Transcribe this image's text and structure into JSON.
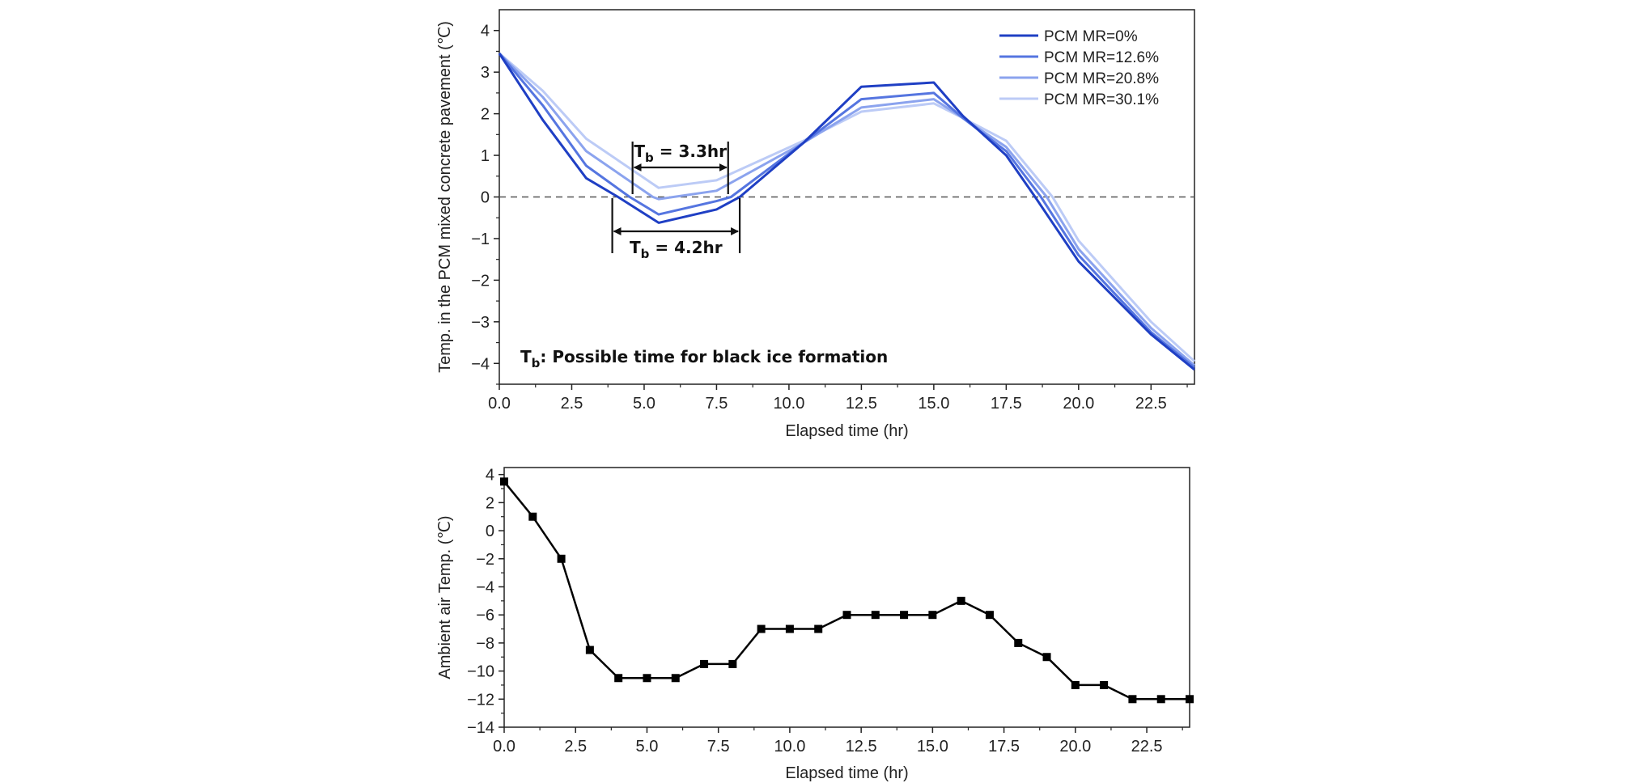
{
  "chart_data": [
    {
      "type": "line",
      "xlabel": "Elapsed time (hr)",
      "ylabel": "Temp. in the PCM mixed concrete pavement (℃)",
      "xlim": [
        0,
        24
      ],
      "ylim": [
        -4.5,
        4.5
      ],
      "xticks": [
        0.0,
        2.5,
        5.0,
        7.5,
        10.0,
        12.5,
        15.0,
        17.5,
        20.0,
        22.5
      ],
      "xtick_labels": [
        "0.0",
        "2.5",
        "5.0",
        "7.5",
        "10.0",
        "12.5",
        "15.0",
        "17.5",
        "20.0",
        "22.5"
      ],
      "yticks": [
        4,
        3,
        2,
        1,
        0,
        -1,
        -2,
        -3,
        -4
      ],
      "ytick_labels": [
        "4",
        "3",
        "2",
        "1",
        "0",
        "−1",
        "−2",
        "−3",
        "−4"
      ],
      "reference_line": {
        "y": 0,
        "style": "dashed"
      },
      "legend_position": "top-right",
      "series": [
        {
          "name": "PCM MR=0%",
          "color": "#1f3fc4",
          "points": [
            [
              0,
              3.45
            ],
            [
              1.5,
              1.85
            ],
            [
              3,
              0.45
            ],
            [
              4.1,
              0
            ],
            [
              5.5,
              -0.62
            ],
            [
              7.5,
              -0.3
            ],
            [
              8.3,
              0
            ],
            [
              10.5,
              1.3
            ],
            [
              12.5,
              2.65
            ],
            [
              15,
              2.75
            ],
            [
              16,
              1.95
            ],
            [
              17.5,
              1.0
            ],
            [
              18.5,
              0
            ],
            [
              20,
              -1.55
            ],
            [
              22.5,
              -3.3
            ],
            [
              24,
              -4.15
            ]
          ]
        },
        {
          "name": "PCM MR=12.6%",
          "color": "#5575e0",
          "points": [
            [
              0,
              3.45
            ],
            [
              1.5,
              2.2
            ],
            [
              3,
              0.75
            ],
            [
              4.5,
              0
            ],
            [
              5.5,
              -0.42
            ],
            [
              7.5,
              -0.1
            ],
            [
              8,
              0
            ],
            [
              10.5,
              1.3
            ],
            [
              12.5,
              2.35
            ],
            [
              15,
              2.5
            ],
            [
              16,
              1.9
            ],
            [
              17.5,
              1.1
            ],
            [
              18.7,
              0
            ],
            [
              20,
              -1.4
            ],
            [
              22.5,
              -3.25
            ],
            [
              24,
              -4.1
            ]
          ]
        },
        {
          "name": "PCM MR=20.8%",
          "color": "#8ba3ee",
          "points": [
            [
              0,
              3.45
            ],
            [
              1.5,
              2.4
            ],
            [
              3,
              1.1
            ],
            [
              5.3,
              0
            ],
            [
              5.5,
              -0.05
            ],
            [
              7.5,
              0.15
            ],
            [
              10.5,
              1.3
            ],
            [
              12.5,
              2.15
            ],
            [
              15,
              2.35
            ],
            [
              16,
              1.9
            ],
            [
              17.5,
              1.2
            ],
            [
              18.9,
              0
            ],
            [
              20,
              -1.25
            ],
            [
              22.5,
              -3.15
            ],
            [
              24,
              -4.05
            ]
          ]
        },
        {
          "name": "PCM MR=30.1%",
          "color": "#bccbf6",
          "points": [
            [
              0,
              3.45
            ],
            [
              1.5,
              2.55
            ],
            [
              3,
              1.4
            ],
            [
              5.5,
              0.22
            ],
            [
              7.5,
              0.4
            ],
            [
              10.5,
              1.35
            ],
            [
              12.5,
              2.05
            ],
            [
              15,
              2.25
            ],
            [
              16,
              1.9
            ],
            [
              17.5,
              1.35
            ],
            [
              19.1,
              0
            ],
            [
              20,
              -1.05
            ],
            [
              22.5,
              -3.0
            ],
            [
              24,
              -3.95
            ]
          ]
        }
      ],
      "annotations": [
        {
          "label_main": "T",
          "label_sub": "b",
          "label_rest": " = 3.3hr",
          "x_start": 4.6,
          "x_end": 7.9
        },
        {
          "label_main": "T",
          "label_sub": "b",
          "label_rest": " = 4.2hr",
          "x_start": 3.9,
          "x_end": 8.3
        }
      ],
      "note": {
        "main": "T",
        "sub": "b",
        "rest": ": Possible time for black ice formation"
      }
    },
    {
      "type": "line",
      "xlabel": "Elapsed time (hr)",
      "ylabel": "Ambient air Temp. (℃)",
      "xlim": [
        0,
        24
      ],
      "ylim": [
        -14,
        4.5
      ],
      "xticks": [
        0.0,
        2.5,
        5.0,
        7.5,
        10.0,
        12.5,
        15.0,
        17.5,
        20.0,
        22.5
      ],
      "xtick_labels": [
        "0.0",
        "2.5",
        "5.0",
        "7.5",
        "10.0",
        "12.5",
        "15.0",
        "17.5",
        "20.0",
        "22.5"
      ],
      "yticks": [
        4,
        2,
        0,
        -2,
        -4,
        -6,
        -8,
        -10,
        -12,
        -14
      ],
      "ytick_labels": [
        "4",
        "2",
        "0",
        "−2",
        "−4",
        "−6",
        "−8",
        "−10",
        "−12",
        "−14"
      ],
      "series": [
        {
          "name": "Ambient air Temp.",
          "color": "#000000",
          "marker": "square",
          "x": [
            0,
            1,
            2,
            3,
            4,
            5,
            6,
            7,
            8,
            9,
            10,
            11,
            12,
            13,
            14,
            15,
            16,
            17,
            18,
            19,
            20,
            21,
            22,
            23,
            24
          ],
          "y": [
            3.5,
            1,
            -2,
            -8.5,
            -10.5,
            -10.5,
            -10.5,
            -9.5,
            -9.5,
            -7,
            -7,
            -7,
            -6,
            -6,
            -6,
            -6,
            -5,
            -6,
            -8,
            -9,
            -11,
            -11,
            -12,
            -12,
            -12
          ]
        }
      ]
    }
  ]
}
